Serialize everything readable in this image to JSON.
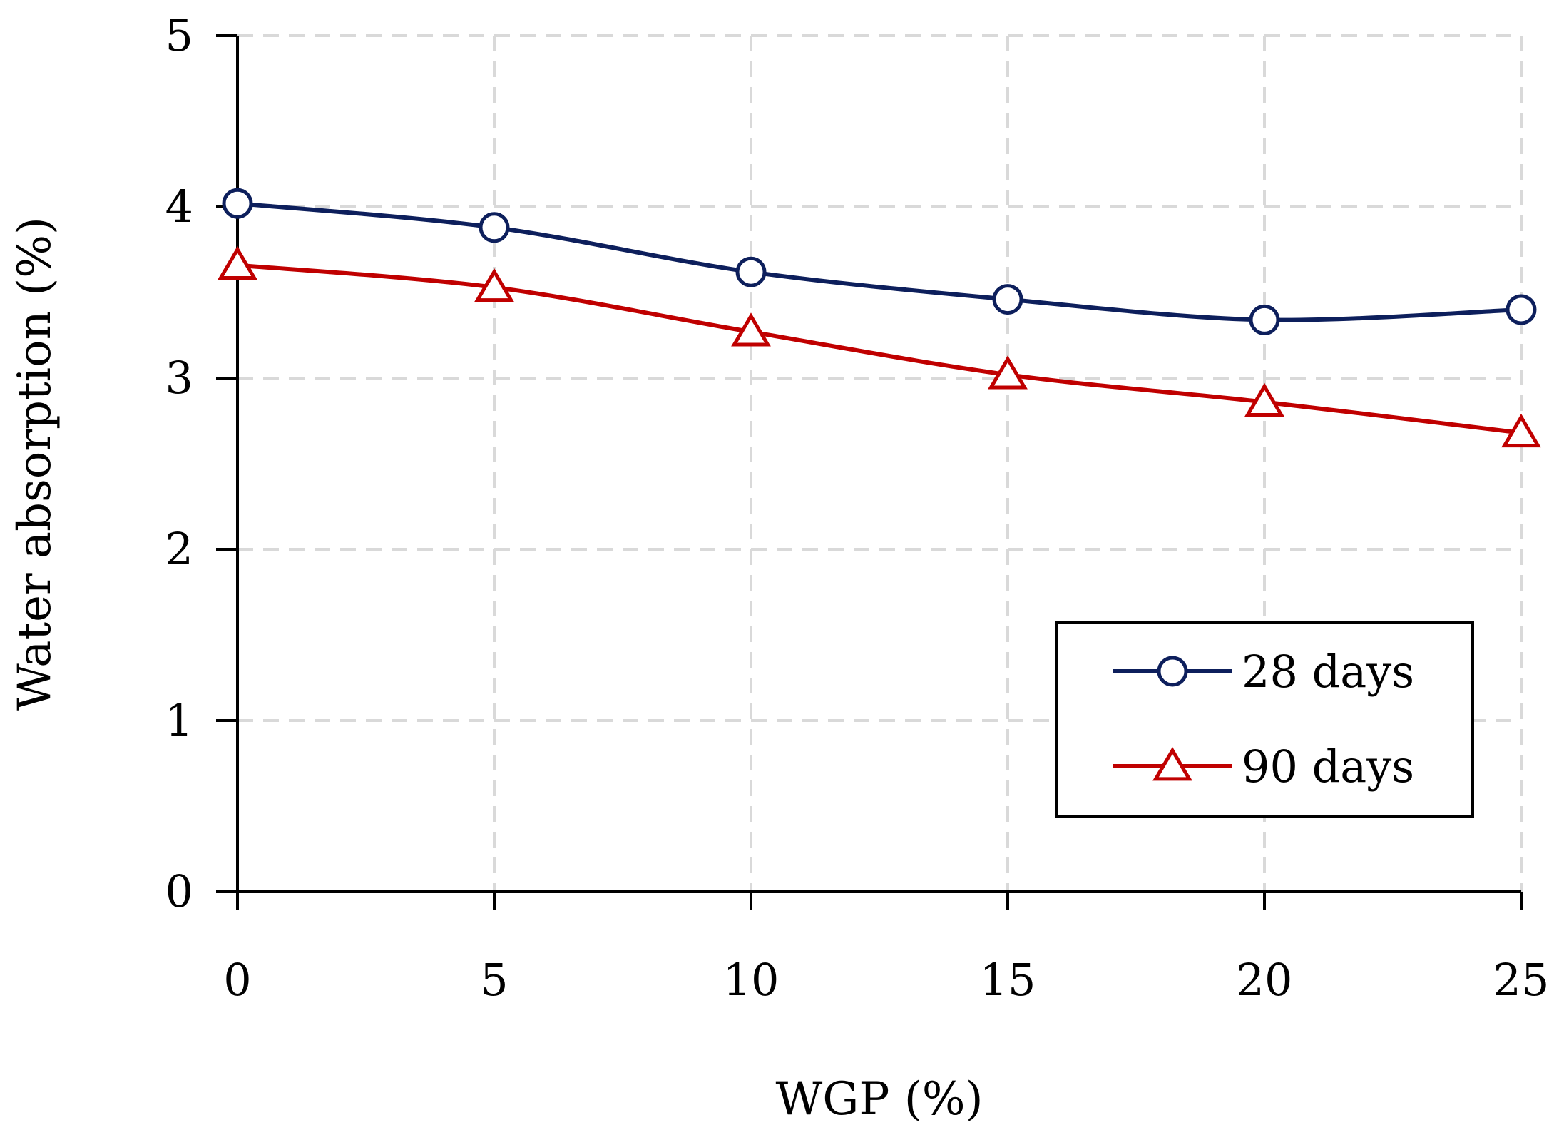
{
  "chart_data": {
    "type": "line",
    "title": "",
    "xlabel": "WGP (%)",
    "ylabel": "Water absorption (%)",
    "x": [
      0,
      5,
      10,
      15,
      20,
      25
    ],
    "x_ticks": [
      "0",
      "5",
      "10",
      "15",
      "20",
      "25"
    ],
    "y_ticks": [
      "0",
      "1",
      "2",
      "3",
      "4",
      "5"
    ],
    "xlim": [
      0,
      25
    ],
    "ylim": [
      0,
      5
    ],
    "grid": true,
    "legend_position": "bottom-right",
    "series": [
      {
        "name": "28 days",
        "values": [
          4.02,
          3.88,
          3.62,
          3.46,
          3.34,
          3.4
        ],
        "marker": "circle",
        "color": "#0d1f5c"
      },
      {
        "name": "90 days",
        "values": [
          3.66,
          3.53,
          3.27,
          3.02,
          2.86,
          2.68
        ],
        "marker": "triangle",
        "color": "#c00000"
      }
    ]
  }
}
